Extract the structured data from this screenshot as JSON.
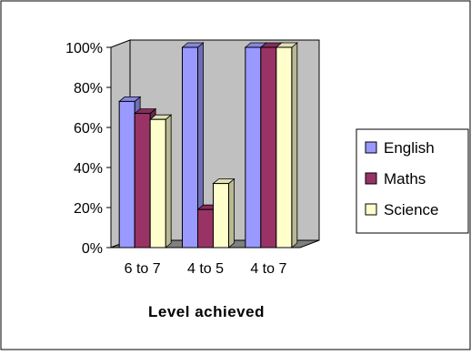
{
  "chart_data": {
    "type": "bar",
    "title": "",
    "xlabel": "Level achieved",
    "ylabel": "",
    "categories": [
      "6 to 7",
      "4 to 5",
      "4 to 7"
    ],
    "series": [
      {
        "name": "English",
        "values": [
          73,
          100,
          100
        ],
        "color": "#9999ff"
      },
      {
        "name": "Maths",
        "values": [
          67,
          19,
          100
        ],
        "color": "#993366"
      },
      {
        "name": "Science",
        "values": [
          64,
          32,
          100
        ],
        "color": "#ffffcc"
      }
    ],
    "ylim": [
      0,
      100
    ],
    "yticks": [
      0,
      20,
      40,
      60,
      80,
      100
    ],
    "ytick_labels": [
      "0%",
      "20%",
      "40%",
      "60%",
      "80%",
      "100%"
    ],
    "grid": false,
    "style": "3d",
    "legend": "right",
    "colors": {
      "wall": "#c0c0c0",
      "floor": "#808080"
    }
  }
}
